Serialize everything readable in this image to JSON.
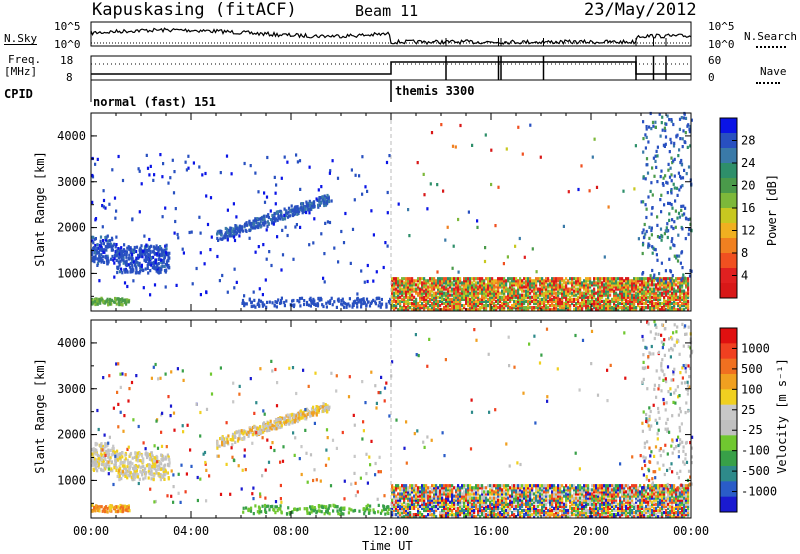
{
  "header": {
    "station": "Kapuskasing (fitACF)",
    "beam": "Beam 11",
    "date": "23/May/2012"
  },
  "strip_labels": {
    "nsky": "N.Sky",
    "nsearch": "N.Search",
    "freq_line1": "Freq.",
    "freq_line2": "[MHz]",
    "nave": "Nave",
    "cpid": "CPID",
    "nsky_ticks": [
      "10^5",
      "10^0"
    ],
    "nsearch_ticks": [
      "10^5",
      "10^0"
    ],
    "freq_ticks": [
      "18",
      "8"
    ],
    "nave_ticks": [
      "60",
      "0"
    ]
  },
  "cpid_modes": [
    "normal (fast) 151",
    "themis 3300"
  ],
  "panels": {
    "power": {
      "ylabel": "Slant Range [km]",
      "y_ticks": [
        "4000",
        "3000",
        "2000",
        "1000"
      ],
      "colorbar_label": "Power [dB]",
      "colorbar_ticks": [
        "28",
        "24",
        "20",
        "16",
        "12",
        "8",
        "4"
      ],
      "colors": [
        "#0a14e6",
        "#2850c0",
        "#3a7aa8",
        "#2e8f6a",
        "#4a9a4a",
        "#7db83a",
        "#c8c820",
        "#f0b020",
        "#f08020",
        "#f05020",
        "#e02020",
        "#d81818"
      ]
    },
    "velocity": {
      "ylabel": "Slant Range [km]",
      "y_ticks": [
        "4000",
        "3000",
        "2000",
        "1000"
      ],
      "colorbar_label": "Velocity [m s⁻¹]",
      "colorbar_ticks": [
        "1000",
        "500",
        "100",
        "25",
        "-25",
        "-100",
        "-500",
        "-1000"
      ],
      "colors": [
        "#1a1ad0",
        "#2a5cc8",
        "#2e8a8a",
        "#38a048",
        "#70c830",
        "#c0c0c0",
        "#c8c8c8",
        "#f0d020",
        "#f0a020",
        "#f07020",
        "#f04020",
        "#e01010"
      ]
    }
  },
  "x_axis": {
    "ticks": [
      "00:00",
      "04:00",
      "08:00",
      "12:00",
      "16:00",
      "20:00",
      "00:00"
    ],
    "label": "Time UT"
  },
  "chart_data": {
    "type": "heatmap",
    "x": {
      "label": "Time UT",
      "range_hours": [
        0,
        24
      ],
      "ticks": [
        "00:00",
        "04:00",
        "08:00",
        "12:00",
        "16:00",
        "20:00",
        "00:00"
      ]
    },
    "y": {
      "label": "Slant Range [km]",
      "range": [
        180,
        4500
      ],
      "ticks": [
        1000,
        2000,
        3000,
        4000
      ]
    },
    "panels": [
      {
        "quantity": "Power [dB]",
        "scale_ticks": [
          4,
          8,
          12,
          16,
          20,
          24,
          28
        ]
      },
      {
        "quantity": "Velocity [m s⁻¹]",
        "scale_ticks": [
          1000,
          500,
          100,
          25,
          -25,
          -100,
          -500,
          -1000
        ]
      }
    ],
    "modes": [
      {
        "cpid": "normal (fast) 151",
        "start_hour": 0
      },
      {
        "cpid": "themis 3300",
        "start_hour": 12
      }
    ],
    "freq_mhz_ticks": [
      18,
      8
    ],
    "nave_ticks": [
      60,
      0
    ]
  }
}
